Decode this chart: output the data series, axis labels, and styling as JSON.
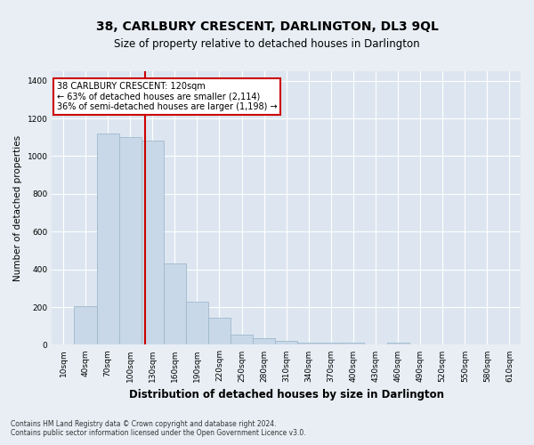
{
  "title": "38, CARLBURY CRESCENT, DARLINGTON, DL3 9QL",
  "subtitle": "Size of property relative to detached houses in Darlington",
  "xlabel": "Distribution of detached houses by size in Darlington",
  "ylabel": "Number of detached properties",
  "categories": [
    "10sqm",
    "40sqm",
    "70sqm",
    "100sqm",
    "130sqm",
    "160sqm",
    "190sqm",
    "220sqm",
    "250sqm",
    "280sqm",
    "310sqm",
    "340sqm",
    "370sqm",
    "400sqm",
    "430sqm",
    "460sqm",
    "490sqm",
    "520sqm",
    "550sqm",
    "580sqm",
    "610sqm"
  ],
  "values": [
    0,
    205,
    1120,
    1100,
    1080,
    430,
    230,
    145,
    55,
    35,
    20,
    10,
    10,
    10,
    0,
    10,
    0,
    0,
    0,
    0,
    0
  ],
  "bar_color": "#c8d8e8",
  "bar_edge_color": "#a0b8cc",
  "fig_bg_color": "#e8eef4",
  "ax_bg_color": "#dde6f0",
  "grid_color": "#ffffff",
  "vline_color": "#cc0000",
  "vline_x": 3.67,
  "annotation_text": "38 CARLBURY CRESCENT: 120sqm\n← 63% of detached houses are smaller (2,114)\n36% of semi-detached houses are larger (1,198) →",
  "annotation_box_color": "#ffffff",
  "annotation_box_edge": "#cc0000",
  "ylim": [
    0,
    1450
  ],
  "yticks": [
    0,
    200,
    400,
    600,
    800,
    1000,
    1200,
    1400
  ],
  "title_fontsize": 10,
  "subtitle_fontsize": 8.5,
  "xlabel_fontsize": 8.5,
  "ylabel_fontsize": 7.5,
  "tick_fontsize": 6.5,
  "annot_fontsize": 7,
  "footer1": "Contains HM Land Registry data © Crown copyright and database right 2024.",
  "footer2": "Contains public sector information licensed under the Open Government Licence v3.0.",
  "footer_fontsize": 5.5
}
